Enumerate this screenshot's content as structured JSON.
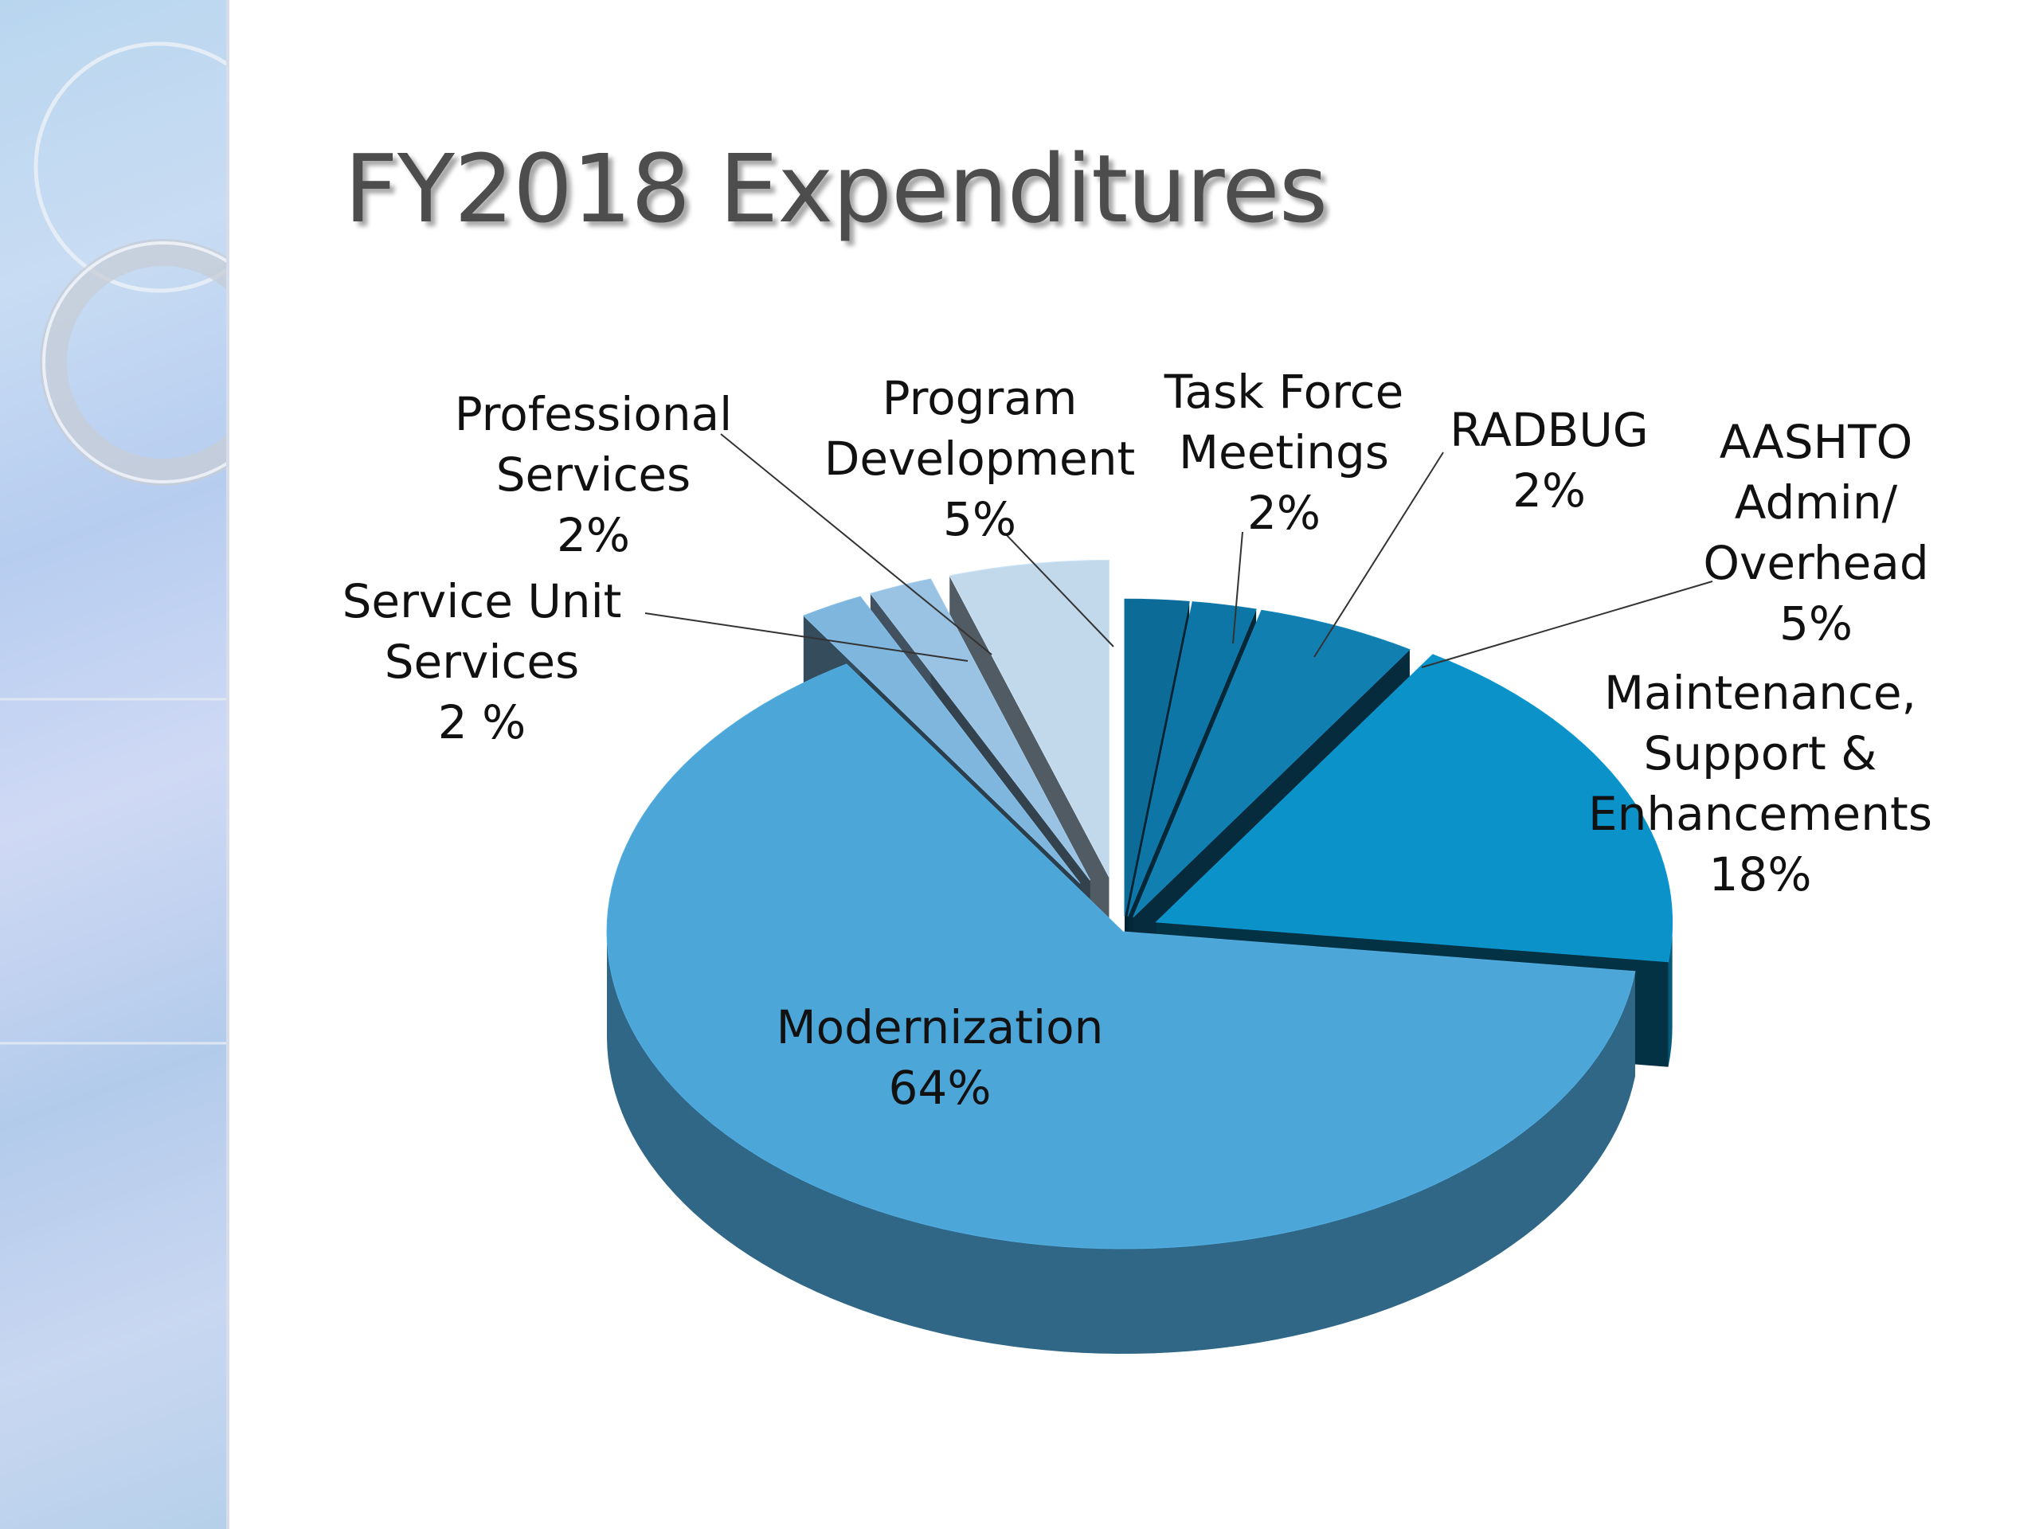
{
  "slide": {
    "title": "FY2018 Expenditures"
  },
  "colors": {
    "sidebar": "#c3d6f0",
    "title_text": "#4d4d4d",
    "label_text": "#111111"
  },
  "chart_data": {
    "type": "pie",
    "style": "3d-exploded",
    "categories": [
      "Task Force Meetings",
      "RADBUG",
      "AASHTO Admin/ Overhead",
      "Maintenance, Support & Enhancements",
      "Modernization",
      "Service Unit Services",
      "Professional Services",
      "Program Development"
    ],
    "values": [
      2,
      2,
      5,
      18,
      64,
      2,
      2,
      5
    ],
    "labels": [
      [
        "Task Force",
        "Meetings",
        "2%"
      ],
      [
        "RADBUG",
        "2%"
      ],
      [
        "AASHTO",
        "Admin/",
        "Overhead",
        "5%"
      ],
      [
        "Maintenance,",
        "Support &",
        "Enhancements",
        "18%"
      ],
      [
        "Modernization",
        "64%"
      ],
      [
        "Service Unit",
        "Services",
        "2 %"
      ],
      [
        "Professional",
        "Services",
        "2%"
      ],
      [
        "Program",
        "Development",
        "5%"
      ]
    ],
    "colors": [
      "#0c6b97",
      "#0d76a6",
      "#127fb1",
      "#0a92c9",
      "#4da6d8",
      "#7fb6de",
      "#9ac2e3",
      "#c2d9ec"
    ],
    "unit": "%",
    "legend": "none"
  }
}
